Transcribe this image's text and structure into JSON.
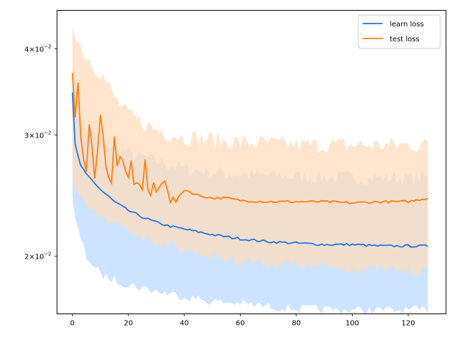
{
  "chart_data": {
    "type": "line",
    "title": "",
    "xlabel": "",
    "ylabel": "",
    "xlim": [
      -5.5,
      133.5
    ],
    "ylim": [
      0.0165,
      0.0455
    ],
    "yscale": "log",
    "x_ticks": [
      0,
      20,
      40,
      60,
      80,
      100,
      120
    ],
    "x_tick_labels": [
      "0",
      "20",
      "40",
      "60",
      "80",
      "100",
      "120"
    ],
    "y_ticks": [
      {
        "value": 0.04,
        "mantissa": "4",
        "base": "10",
        "exp": "−2"
      },
      {
        "value": 0.03,
        "mantissa": "3",
        "base": "10",
        "exp": "−2"
      },
      {
        "value": 0.02,
        "mantissa": "2",
        "base": "10",
        "exp": "−2"
      }
    ],
    "legend_position": "top-right",
    "grid": false,
    "series": [
      {
        "name": "learn loss",
        "color": "#1f77e5",
        "band_color": "#cce4ff",
        "mean_knots": [
          [
            0,
            0.0345
          ],
          [
            1,
            0.029
          ],
          [
            2,
            0.028
          ],
          [
            3,
            0.027
          ],
          [
            5,
            0.0263
          ],
          [
            7,
            0.0258
          ],
          [
            10,
            0.025
          ],
          [
            15,
            0.024
          ],
          [
            20,
            0.0233
          ],
          [
            25,
            0.0228
          ],
          [
            30,
            0.0224
          ],
          [
            35,
            0.0221
          ],
          [
            40,
            0.0219
          ],
          [
            50,
            0.0215
          ],
          [
            60,
            0.0212
          ],
          [
            70,
            0.021
          ],
          [
            80,
            0.0209
          ],
          [
            90,
            0.0208
          ],
          [
            100,
            0.0208
          ],
          [
            110,
            0.0207
          ],
          [
            120,
            0.0207
          ],
          [
            127,
            0.0207
          ]
        ],
        "lower_knots": [
          [
            0,
            0.0242
          ],
          [
            1,
            0.0225
          ],
          [
            3,
            0.0212
          ],
          [
            5,
            0.02
          ],
          [
            8,
            0.0193
          ],
          [
            10,
            0.0188
          ],
          [
            15,
            0.0185
          ],
          [
            20,
            0.0182
          ],
          [
            30,
            0.0178
          ],
          [
            40,
            0.0175
          ],
          [
            50,
            0.0172
          ],
          [
            60,
            0.0171
          ],
          [
            70,
            0.0169
          ],
          [
            80,
            0.0168
          ],
          [
            100,
            0.0167
          ],
          [
            120,
            0.0167
          ],
          [
            127,
            0.0167
          ]
        ],
        "upper_knots": [
          [
            0,
            0.039
          ],
          [
            1,
            0.036
          ],
          [
            3,
            0.032
          ],
          [
            5,
            0.0305
          ],
          [
            10,
            0.0295
          ],
          [
            15,
            0.0288
          ],
          [
            20,
            0.0282
          ],
          [
            30,
            0.0275
          ],
          [
            40,
            0.0268
          ],
          [
            50,
            0.0265
          ],
          [
            60,
            0.0263
          ],
          [
            80,
            0.0261
          ],
          [
            100,
            0.026
          ],
          [
            127,
            0.026
          ]
        ],
        "noise": 0.025
      },
      {
        "name": "test loss",
        "color": "#ff7f0e",
        "band_color": "#ffdcbc",
        "mean_knots": [
          [
            0,
            0.0368
          ],
          [
            1,
            0.0318
          ],
          [
            2,
            0.0358
          ],
          [
            3,
            0.0298
          ],
          [
            4,
            0.0276
          ],
          [
            5,
            0.0265
          ],
          [
            6,
            0.031
          ],
          [
            7,
            0.029
          ],
          [
            8,
            0.026
          ],
          [
            9,
            0.0285
          ],
          [
            10,
            0.032
          ],
          [
            11,
            0.03
          ],
          [
            12,
            0.027
          ],
          [
            13,
            0.026
          ],
          [
            14,
            0.0255
          ],
          [
            15,
            0.0298
          ],
          [
            16,
            0.027
          ],
          [
            17,
            0.028
          ],
          [
            18,
            0.0275
          ],
          [
            19,
            0.0265
          ],
          [
            20,
            0.026
          ],
          [
            21,
            0.0275
          ],
          [
            22,
            0.0255
          ],
          [
            24,
            0.0255
          ],
          [
            25,
            0.025
          ],
          [
            26,
            0.0276
          ],
          [
            27,
            0.025
          ],
          [
            28,
            0.0245
          ],
          [
            29,
            0.0255
          ],
          [
            30,
            0.0248
          ],
          [
            32,
            0.0255
          ],
          [
            33,
            0.0258
          ],
          [
            34,
            0.025
          ],
          [
            35,
            0.024
          ],
          [
            36,
            0.0243
          ],
          [
            37,
            0.024
          ],
          [
            40,
            0.025
          ],
          [
            45,
            0.0245
          ],
          [
            50,
            0.0243
          ],
          [
            55,
            0.0243
          ],
          [
            60,
            0.0241
          ],
          [
            70,
            0.024
          ],
          [
            80,
            0.024
          ],
          [
            90,
            0.024
          ],
          [
            100,
            0.0239
          ],
          [
            110,
            0.024
          ],
          [
            120,
            0.024
          ],
          [
            127,
            0.0243
          ]
        ],
        "lower_knots": [
          [
            0,
            0.0255
          ],
          [
            2,
            0.0245
          ],
          [
            5,
            0.0235
          ],
          [
            10,
            0.0228
          ],
          [
            15,
            0.0222
          ],
          [
            20,
            0.0218
          ],
          [
            30,
            0.021
          ],
          [
            40,
            0.0205
          ],
          [
            50,
            0.02
          ],
          [
            60,
            0.0197
          ],
          [
            80,
            0.0194
          ],
          [
            100,
            0.0192
          ],
          [
            127,
            0.019
          ]
        ],
        "upper_knots": [
          [
            0,
            0.044
          ],
          [
            2,
            0.041
          ],
          [
            5,
            0.039
          ],
          [
            10,
            0.037
          ],
          [
            15,
            0.034
          ],
          [
            20,
            0.032
          ],
          [
            30,
            0.0305
          ],
          [
            40,
            0.0298
          ],
          [
            60,
            0.0293
          ],
          [
            80,
            0.029
          ],
          [
            100,
            0.029
          ],
          [
            127,
            0.029
          ]
        ],
        "noise": 0.03
      }
    ]
  }
}
